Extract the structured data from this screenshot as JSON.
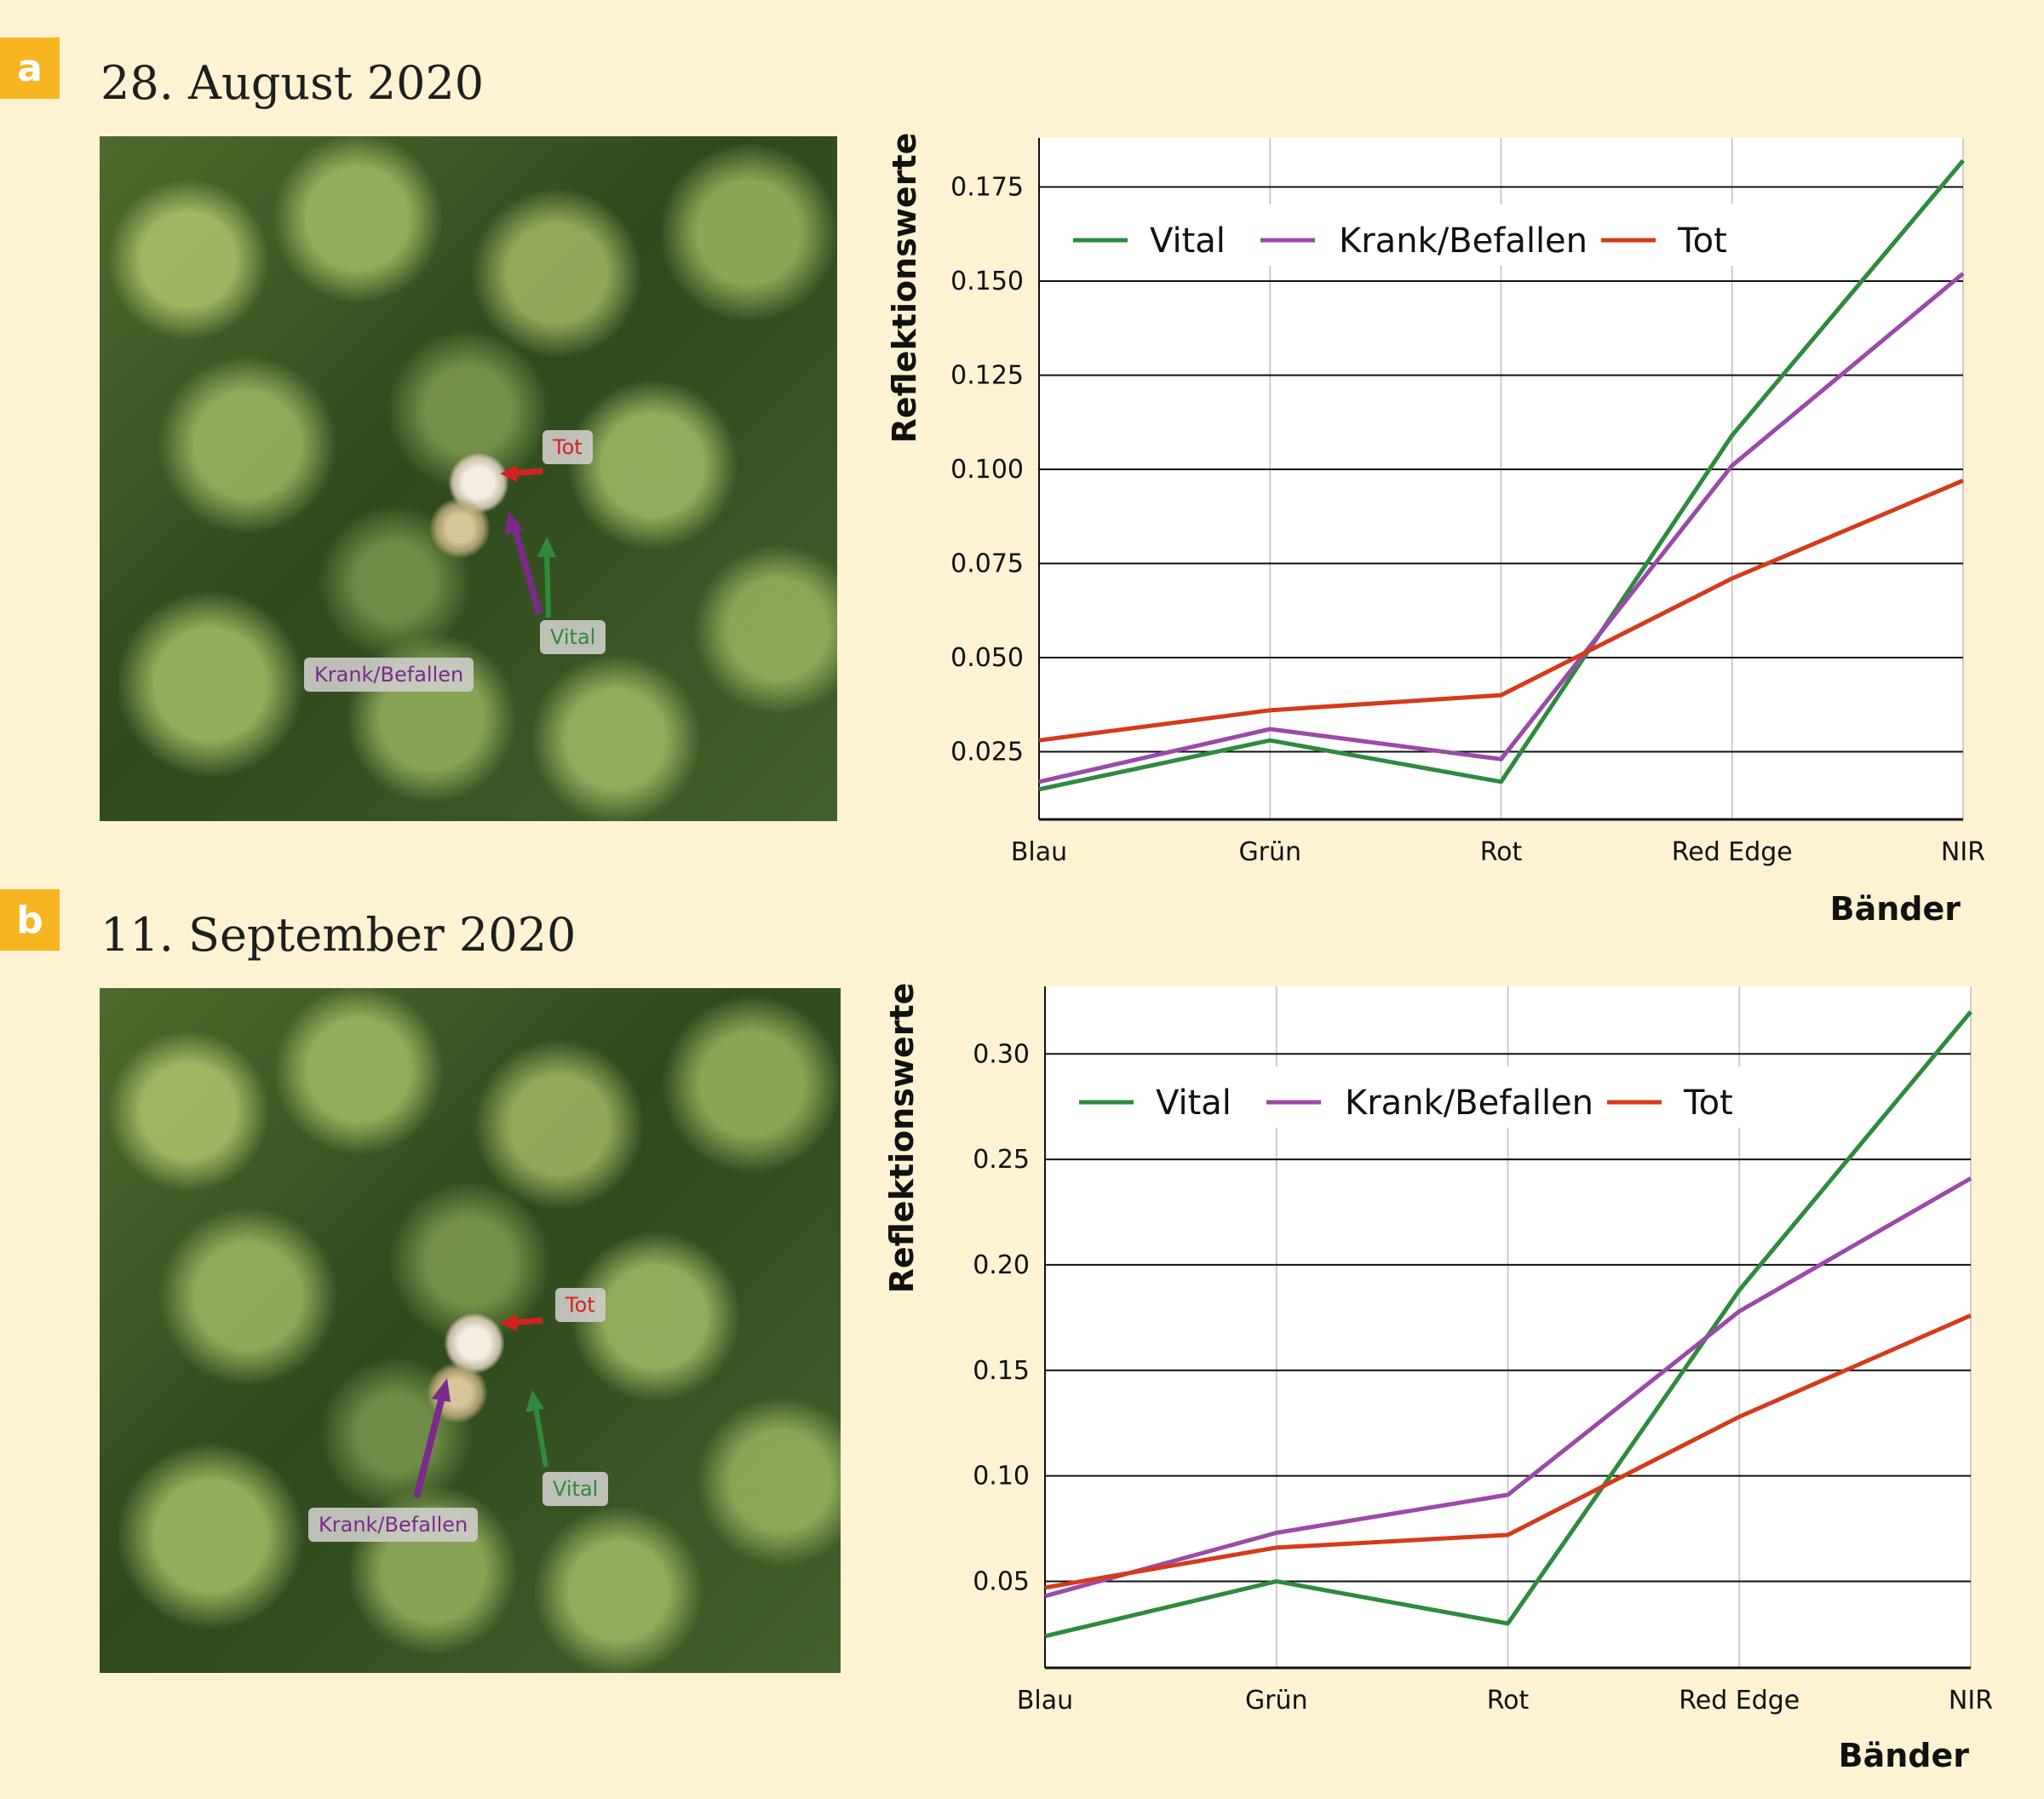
{
  "panels": [
    {
      "tag": "a",
      "date": "28. August 2020",
      "photo_labels": {
        "tot": "Tot",
        "vital": "Vital",
        "krank": "Krank/Befallen"
      }
    },
    {
      "tag": "b",
      "date": "11. September 2020",
      "photo_labels": {
        "tot": "Tot",
        "vital": "Vital",
        "krank": "Krank/Befallen"
      }
    }
  ],
  "colors": {
    "vital": "#2e8a3e",
    "krank": "#9a4aa8",
    "tot": "#d63a1a"
  },
  "chart_data": [
    {
      "type": "line",
      "title": "",
      "xlabel": "Bänder",
      "ylabel": "Reflektionswerte",
      "categories": [
        "Blau",
        "Grün",
        "Rot",
        "Red Edge",
        "NIR"
      ],
      "yticks": [
        "0.025",
        "0.050",
        "0.075",
        "0.100",
        "0.125",
        "0.150",
        "0.175"
      ],
      "ylim": [
        0.007,
        0.188
      ],
      "grid": "horizontal",
      "legend": "top-left",
      "series": [
        {
          "name": "Vital",
          "color": "#2e8a3e",
          "values": [
            0.015,
            0.028,
            0.017,
            0.109,
            0.182
          ]
        },
        {
          "name": "Krank/Befallen",
          "color": "#9a4aa8",
          "values": [
            0.017,
            0.031,
            0.023,
            0.101,
            0.152
          ]
        },
        {
          "name": "Tot",
          "color": "#d63a1a",
          "values": [
            0.028,
            0.036,
            0.04,
            0.071,
            0.097
          ]
        }
      ]
    },
    {
      "type": "line",
      "title": "",
      "xlabel": "Bänder",
      "ylabel": "Reflektionswerte",
      "categories": [
        "Blau",
        "Grün",
        "Rot",
        "Red Edge",
        "NIR"
      ],
      "yticks": [
        "0.05",
        "0.10",
        "0.15",
        "0.20",
        "0.25",
        "0.30"
      ],
      "ylim": [
        0.009,
        0.332
      ],
      "grid": "both",
      "legend": "top-left",
      "series": [
        {
          "name": "Vital",
          "color": "#2e8a3e",
          "values": [
            0.024,
            0.05,
            0.03,
            0.188,
            0.32
          ]
        },
        {
          "name": "Krank/Befallen",
          "color": "#9a4aa8",
          "values": [
            0.043,
            0.073,
            0.091,
            0.178,
            0.241
          ]
        },
        {
          "name": "Tot",
          "color": "#d63a1a",
          "values": [
            0.047,
            0.066,
            0.072,
            0.128,
            0.176
          ]
        }
      ]
    }
  ]
}
